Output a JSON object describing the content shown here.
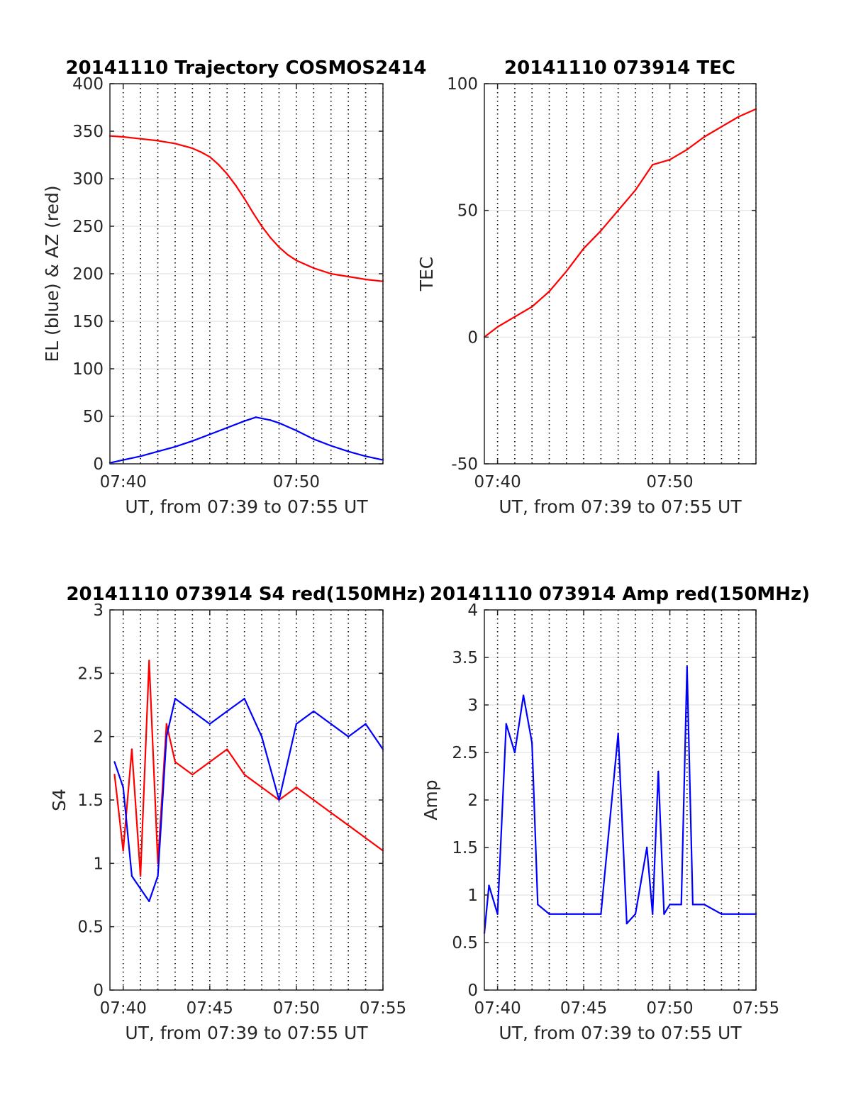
{
  "chart_data": [
    {
      "type": "line",
      "title": "20141110 Trajectory COSMOS2414",
      "xlabel": "UT, from 07:39 to 07:55 UT",
      "ylabel": "EL (blue) & AZ (red)",
      "xlim": [
        "07:39:14",
        "07:55:00"
      ],
      "ylim": [
        0,
        400
      ],
      "yticks": [
        0,
        50,
        100,
        150,
        200,
        250,
        300,
        350,
        400
      ],
      "yticklabels": [
        "0",
        "50",
        "100",
        "150",
        "200",
        "250",
        "300",
        "350",
        "400"
      ],
      "xticks": [
        "07:40",
        "07:50"
      ],
      "xticklabels": [
        "07:40",
        "07:50"
      ],
      "minute_gridlines": true,
      "y_grid": true,
      "series": [
        {
          "name": "AZ",
          "color": "#ff0000",
          "x": [
            "07:39:14",
            "07:40:00",
            "07:41:00",
            "07:42:00",
            "07:43:00",
            "07:44:00",
            "07:44:30",
            "07:45:00",
            "07:45:30",
            "07:46:00",
            "07:46:30",
            "07:47:00",
            "07:47:30",
            "07:48:00",
            "07:48:30",
            "07:49:00",
            "07:49:30",
            "07:50:00",
            "07:51:00",
            "07:52:00",
            "07:53:00",
            "07:54:00",
            "07:55:00"
          ],
          "values": [
            345,
            344,
            342,
            340,
            337,
            332,
            328,
            323,
            315,
            305,
            293,
            279,
            264,
            250,
            238,
            228,
            220,
            214,
            206,
            200,
            197,
            194,
            192
          ]
        },
        {
          "name": "EL",
          "color": "#0000ff",
          "x": [
            "07:39:14",
            "07:40:00",
            "07:41:00",
            "07:42:00",
            "07:43:00",
            "07:44:00",
            "07:45:00",
            "07:46:00",
            "07:47:00",
            "07:47:40",
            "07:48:30",
            "07:49:00",
            "07:50:00",
            "07:51:00",
            "07:52:00",
            "07:53:00",
            "07:54:00",
            "07:55:00"
          ],
          "values": [
            1,
            4,
            8,
            13,
            18,
            24,
            31,
            38,
            45,
            49,
            46,
            43,
            35,
            26,
            19,
            13,
            8,
            4
          ]
        }
      ]
    },
    {
      "type": "line",
      "title": "20141110 073914 TEC",
      "xlabel": "UT, from 07:39 to 07:55 UT",
      "ylabel": "TEC",
      "xlim": [
        "07:39:14",
        "07:55:00"
      ],
      "ylim": [
        -50,
        100
      ],
      "yticks": [
        -50,
        0,
        50,
        100
      ],
      "yticklabels": [
        "-50",
        "0",
        "50",
        "100"
      ],
      "xticks": [
        "07:40",
        "07:50"
      ],
      "xticklabels": [
        "07:40",
        "07:50"
      ],
      "minute_gridlines": true,
      "y_grid": true,
      "series": [
        {
          "name": "TEC",
          "color": "#ff0000",
          "x": [
            "07:39:14",
            "07:40:00",
            "07:41:00",
            "07:42:00",
            "07:43:00",
            "07:44:00",
            "07:45:00",
            "07:46:00",
            "07:47:00",
            "07:48:00",
            "07:49:00",
            "07:50:00",
            "07:51:00",
            "07:52:00",
            "07:53:00",
            "07:54:00",
            "07:55:00"
          ],
          "values": [
            0,
            4,
            8,
            12,
            18,
            26,
            35,
            42,
            50,
            58,
            68,
            70,
            74,
            79,
            83,
            87,
            90
          ]
        }
      ]
    },
    {
      "type": "line",
      "title": "20141110 073914 S4 red(150MHz)",
      "xlabel": "UT, from 07:39 to 07:55 UT",
      "ylabel": "S4",
      "xlim": [
        "07:39:14",
        "07:55:00"
      ],
      "ylim": [
        0,
        3
      ],
      "yticks": [
        0,
        0.5,
        1,
        1.5,
        2,
        2.5,
        3
      ],
      "yticklabels": [
        "0",
        "0.5",
        "1",
        "1.5",
        "2",
        "2.5",
        "3"
      ],
      "xticks": [
        "07:40",
        "07:45",
        "07:50",
        "07:55"
      ],
      "xticklabels": [
        "07:40",
        "07:45",
        "07:50",
        "07:55"
      ],
      "minute_gridlines": true,
      "y_grid": true,
      "series": [
        {
          "name": "S4 red",
          "color": "#ff0000",
          "x": [
            "07:39:30",
            "07:40:00",
            "07:40:30",
            "07:41:00",
            "07:41:30",
            "07:42:00",
            "07:42:30",
            "07:43:00",
            "07:44:00",
            "07:45:00",
            "07:46:00",
            "07:47:00",
            "07:48:00",
            "07:49:00",
            "07:50:00",
            "07:51:00",
            "07:52:00",
            "07:53:00",
            "07:54:00",
            "07:55:00"
          ],
          "values": [
            1.7,
            1.1,
            1.9,
            0.9,
            2.6,
            1.0,
            2.1,
            1.8,
            1.7,
            1.8,
            1.9,
            1.7,
            1.6,
            1.5,
            1.6,
            1.5,
            1.4,
            1.3,
            1.2,
            1.1
          ]
        },
        {
          "name": "S4 blue",
          "color": "#0000ff",
          "x": [
            "07:39:30",
            "07:40:00",
            "07:40:30",
            "07:41:00",
            "07:41:30",
            "07:42:00",
            "07:42:30",
            "07:43:00",
            "07:44:00",
            "07:45:00",
            "07:46:00",
            "07:47:00",
            "07:48:00",
            "07:49:00",
            "07:50:00",
            "07:51:00",
            "07:52:00",
            "07:53:00",
            "07:54:00",
            "07:55:00"
          ],
          "values": [
            1.8,
            1.6,
            0.9,
            0.8,
            0.7,
            0.9,
            2.0,
            2.3,
            2.2,
            2.1,
            2.2,
            2.3,
            2.0,
            1.5,
            2.1,
            2.2,
            2.1,
            2.0,
            2.1,
            1.9
          ]
        }
      ]
    },
    {
      "type": "line",
      "title": "20141110 073914 Amp red(150MHz)",
      "xlabel": "UT, from 07:39 to 07:55 UT",
      "ylabel": "Amp",
      "xlim": [
        "07:39:14",
        "07:55:00"
      ],
      "ylim": [
        0,
        4
      ],
      "yticks": [
        0,
        0.5,
        1,
        1.5,
        2,
        2.5,
        3,
        3.5,
        4
      ],
      "yticklabels": [
        "0",
        "0.5",
        "1",
        "1.5",
        "2",
        "2.5",
        "3",
        "3.5",
        "4"
      ],
      "xticks": [
        "07:40",
        "07:45",
        "07:50",
        "07:55"
      ],
      "xticklabels": [
        "07:40",
        "07:45",
        "07:50",
        "07:55"
      ],
      "minute_gridlines": true,
      "y_grid": true,
      "series": [
        {
          "name": "Amp",
          "color": "#0000ff",
          "x": [
            "07:39:14",
            "07:39:30",
            "07:40:00",
            "07:40:30",
            "07:41:00",
            "07:41:30",
            "07:42:00",
            "07:42:20",
            "07:43:00",
            "07:44:00",
            "07:45:00",
            "07:46:00",
            "07:47:00",
            "07:47:30",
            "07:48:00",
            "07:48:40",
            "07:49:00",
            "07:49:20",
            "07:49:40",
            "07:50:00",
            "07:50:40",
            "07:51:00",
            "07:51:20",
            "07:52:00",
            "07:53:00",
            "07:54:00",
            "07:55:00"
          ],
          "values": [
            0.6,
            1.1,
            0.8,
            2.8,
            2.5,
            3.1,
            2.6,
            0.9,
            0.8,
            0.8,
            0.8,
            0.8,
            2.7,
            0.7,
            0.8,
            1.5,
            0.8,
            2.3,
            0.8,
            0.9,
            0.9,
            3.4,
            0.9,
            0.9,
            0.8,
            0.8,
            0.8
          ]
        }
      ]
    }
  ]
}
